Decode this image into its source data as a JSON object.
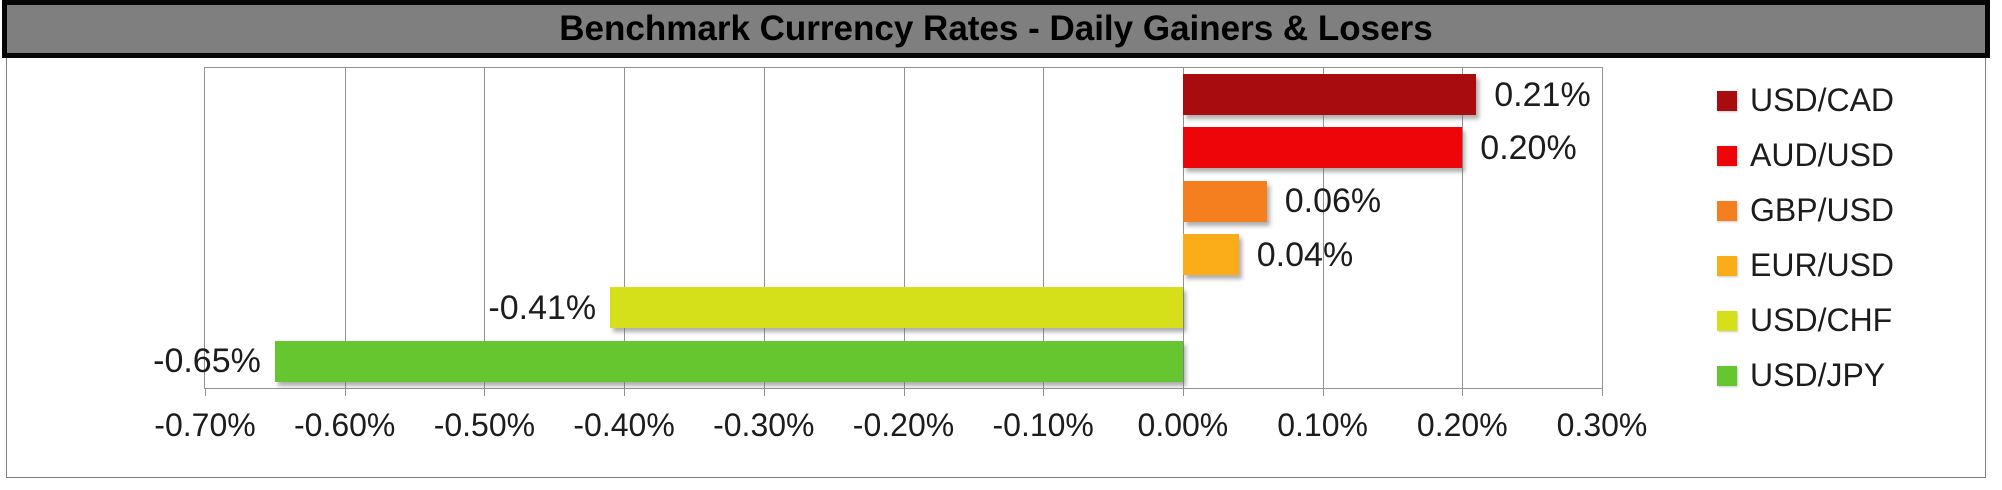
{
  "title_bar": {
    "title": "Benchmark Currency Rates - Daily Gainers & Losers",
    "background_color": "#7f7f7f",
    "border_color": "#000000"
  },
  "chart_data": {
    "type": "bar",
    "orientation": "horizontal",
    "title": "Benchmark Currency Rates - Daily Gainers & Losers",
    "categories": [
      "USD/CAD",
      "AUD/USD",
      "GBP/USD",
      "EUR/USD",
      "USD/CHF",
      "USD/JPY"
    ],
    "values": [
      0.21,
      0.2,
      0.06,
      0.04,
      -0.41,
      -0.65
    ],
    "value_labels": [
      "0.21%",
      "0.20%",
      "0.06%",
      "0.04%",
      "-0.41%",
      "-0.65%"
    ],
    "bar_colors": [
      "#A80C0F",
      "#EE0509",
      "#F57E1E",
      "#FAAD18",
      "#D5E01A",
      "#66C62F"
    ],
    "xlabel": "",
    "ylabel": "",
    "xlim": [
      -0.7,
      0.3
    ],
    "x_tick_step": 0.1,
    "x_ticks": [
      {
        "label": "-0.70%",
        "value": -0.7
      },
      {
        "label": "-0.60%",
        "value": -0.6
      },
      {
        "label": "-0.50%",
        "value": -0.5
      },
      {
        "label": "-0.40%",
        "value": -0.4
      },
      {
        "label": "-0.30%",
        "value": -0.3
      },
      {
        "label": "-0.20%",
        "value": -0.2
      },
      {
        "label": "-0.10%",
        "value": -0.1
      },
      {
        "label": "0.00%",
        "value": 0.0
      },
      {
        "label": "0.10%",
        "value": 0.1
      },
      {
        "label": "0.20%",
        "value": 0.2
      },
      {
        "label": "0.30%",
        "value": 0.3
      }
    ],
    "grid": true,
    "legend_position": "right"
  }
}
